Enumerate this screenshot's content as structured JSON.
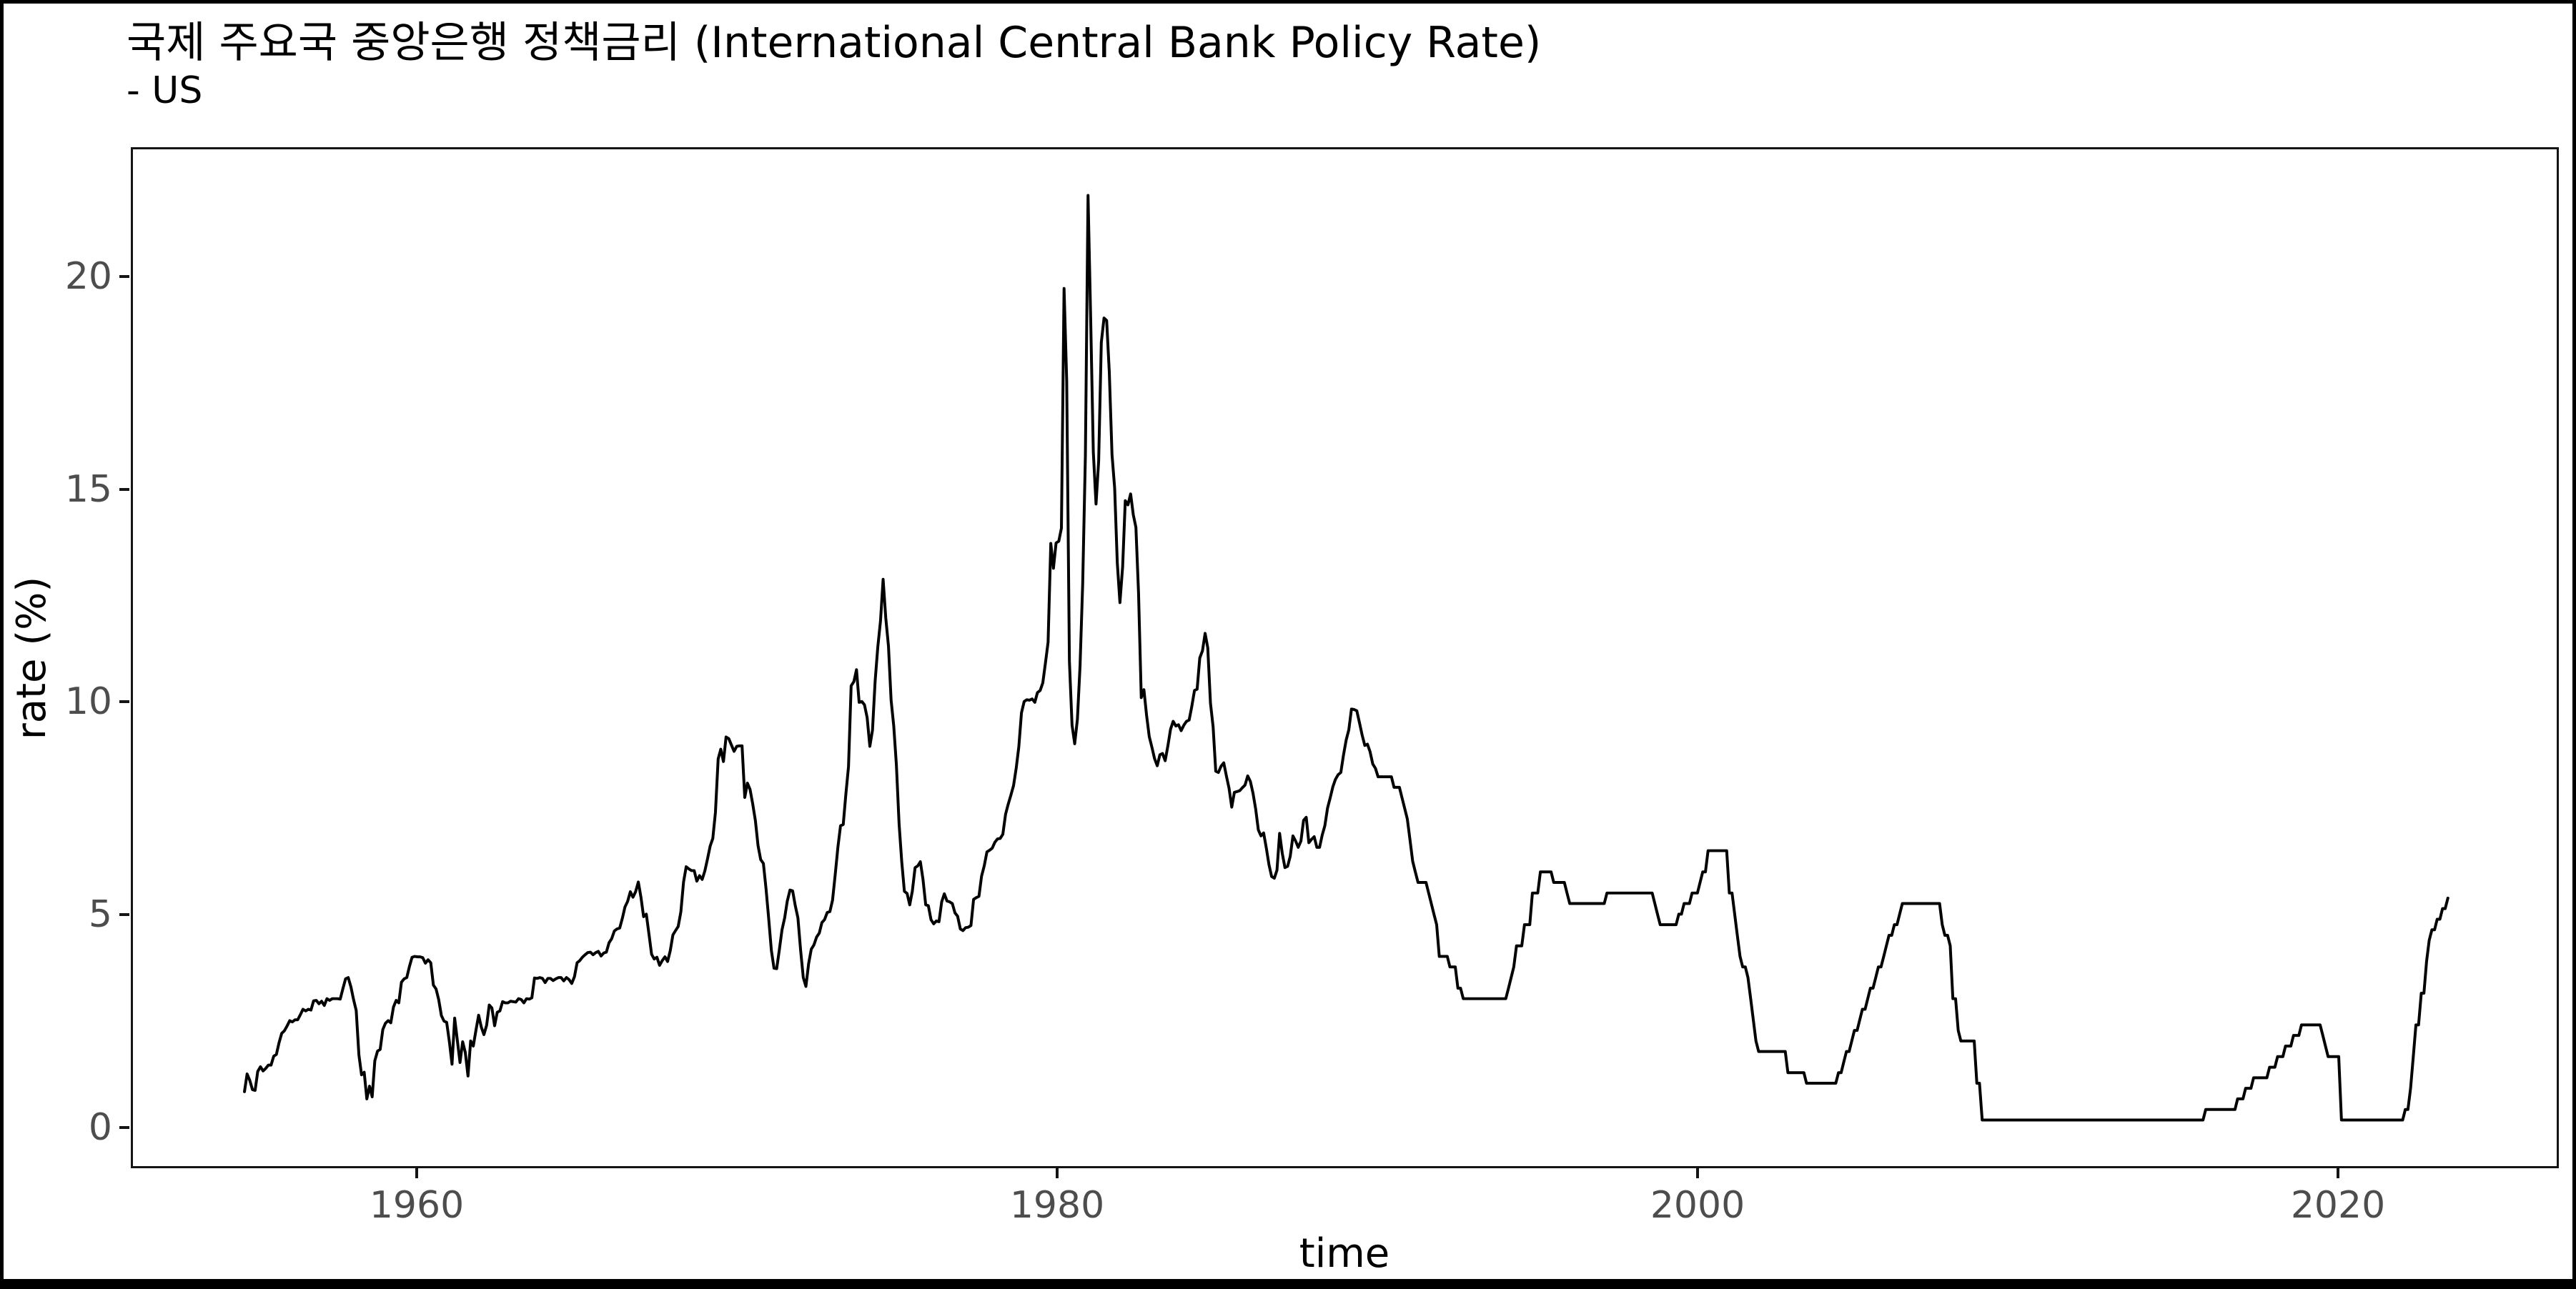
{
  "header": {
    "title": "국제 주요국 중앙은행 정책금리 (International Central Bank Policy Rate)",
    "subtitle": "- US"
  },
  "chart_data": {
    "type": "line",
    "title": "국제 주요국 중앙은행 정책금리 (International Central Bank Policy Rate)",
    "subtitle": "- US",
    "xlabel": "time",
    "ylabel": "rate (%)",
    "x_ticks": [
      1960,
      1980,
      2000,
      2020
    ],
    "y_ticks": [
      0,
      5,
      10,
      15,
      20
    ],
    "x_domain": [
      1951.05,
      2026.95
    ],
    "y_domain": [
      -0.96,
      23.09
    ],
    "grid": false,
    "legend_position": "none",
    "line_color": "#000000",
    "tick_label_color": "#4d4d4d",
    "background_color": "#ffffff",
    "series": [
      {
        "name": "US",
        "frequency": "monthly",
        "start_year": 1954,
        "start_month": 7,
        "values": [
          0.8,
          1.22,
          1.07,
          0.85,
          0.83,
          1.28,
          1.39,
          1.29,
          1.35,
          1.43,
          1.43,
          1.64,
          1.68,
          1.96,
          2.18,
          2.24,
          2.35,
          2.48,
          2.45,
          2.5,
          2.5,
          2.62,
          2.75,
          2.71,
          2.75,
          2.73,
          2.95,
          2.96,
          2.88,
          2.94,
          2.84,
          3.0,
          2.96,
          3.0,
          3.0,
          3.0,
          2.99,
          3.24,
          3.47,
          3.5,
          3.28,
          2.98,
          2.72,
          1.67,
          1.2,
          1.26,
          0.63,
          0.93,
          0.68,
          1.53,
          1.76,
          1.8,
          2.27,
          2.42,
          2.48,
          2.43,
          2.8,
          2.96,
          2.9,
          3.39,
          3.47,
          3.5,
          3.76,
          3.98,
          4.0,
          3.99,
          3.99,
          3.97,
          3.84,
          3.92,
          3.85,
          3.32,
          3.23,
          2.98,
          2.6,
          2.47,
          2.44,
          1.98,
          1.45,
          2.54,
          2.02,
          1.49,
          1.98,
          1.73,
          1.17,
          2.0,
          1.88,
          2.26,
          2.61,
          2.33,
          2.15,
          2.37,
          2.85,
          2.78,
          2.36,
          2.68,
          2.71,
          2.93,
          2.9,
          2.9,
          2.94,
          2.93,
          2.92,
          3.0,
          2.98,
          2.9,
          3.0,
          2.99,
          3.02,
          3.49,
          3.48,
          3.5,
          3.48,
          3.38,
          3.48,
          3.48,
          3.43,
          3.47,
          3.5,
          3.5,
          3.42,
          3.5,
          3.45,
          3.36,
          3.52,
          3.85,
          3.9,
          3.98,
          4.04,
          4.09,
          4.1,
          4.04,
          4.09,
          4.12,
          4.01,
          4.08,
          4.1,
          4.32,
          4.42,
          4.6,
          4.65,
          4.67,
          4.9,
          5.17,
          5.3,
          5.53,
          5.4,
          5.53,
          5.76,
          5.4,
          4.94,
          5.0,
          4.53,
          4.05,
          3.94,
          3.98,
          3.79,
          3.9,
          3.99,
          3.88,
          4.13,
          4.51,
          4.61,
          4.71,
          5.05,
          5.76,
          6.12,
          6.07,
          6.03,
          6.03,
          5.78,
          5.91,
          5.82,
          6.02,
          6.3,
          6.61,
          6.79,
          7.41,
          8.67,
          8.9,
          8.61,
          9.19,
          9.15,
          9.0,
          8.85,
          8.97,
          8.98,
          8.98,
          7.76,
          8.1,
          7.95,
          7.61,
          7.21,
          6.62,
          6.29,
          6.2,
          5.6,
          4.9,
          4.14,
          3.72,
          3.71,
          4.15,
          4.63,
          4.91,
          5.31,
          5.57,
          5.55,
          5.2,
          4.91,
          4.14,
          3.5,
          3.29,
          3.83,
          4.17,
          4.27,
          4.46,
          4.55,
          4.8,
          4.87,
          5.04,
          5.06,
          5.33,
          5.94,
          6.58,
          7.09,
          7.12,
          7.84,
          8.49,
          10.4,
          10.5,
          10.78,
          10.01,
          10.03,
          9.95,
          9.65,
          8.97,
          9.35,
          10.51,
          11.31,
          11.93,
          12.92,
          12.01,
          11.34,
          10.06,
          9.45,
          8.53,
          7.13,
          6.24,
          5.54,
          5.49,
          5.22,
          5.55,
          6.1,
          6.14,
          6.24,
          5.82,
          5.22,
          5.2,
          4.87,
          4.77,
          4.84,
          4.82,
          5.29,
          5.48,
          5.31,
          5.29,
          5.25,
          5.03,
          4.95,
          4.65,
          4.61,
          4.68,
          4.69,
          4.73,
          5.35,
          5.39,
          5.42,
          5.9,
          6.14,
          6.47,
          6.51,
          6.56,
          6.7,
          6.78,
          6.79,
          6.89,
          7.36,
          7.6,
          7.81,
          8.04,
          8.45,
          8.96,
          9.76,
          10.03,
          10.07,
          10.06,
          10.09,
          10.01,
          10.24,
          10.29,
          10.47,
          10.94,
          11.43,
          13.77,
          13.18,
          13.78,
          13.82,
          14.13,
          19.8,
          17.61,
          10.98,
          9.47,
          9.03,
          9.61,
          10.87,
          12.81,
          15.85,
          22.0,
          19.08,
          15.93,
          14.7,
          15.72,
          18.52,
          19.1,
          19.04,
          17.82,
          15.87,
          15.08,
          13.31,
          12.37,
          13.22,
          14.78,
          14.68,
          14.94,
          14.45,
          14.15,
          12.59,
          10.12,
          10.31,
          9.71,
          9.2,
          8.95,
          8.68,
          8.51,
          8.77,
          8.8,
          8.63,
          8.98,
          9.37,
          9.56,
          9.45,
          9.48,
          9.34,
          9.47,
          9.56,
          9.59,
          9.91,
          10.29,
          10.32,
          11.06,
          11.23,
          11.64,
          11.3,
          9.99,
          9.43,
          8.38,
          8.35,
          8.5,
          8.58,
          8.27,
          7.97,
          7.53,
          7.88,
          7.9,
          7.92,
          7.99,
          8.05,
          8.27,
          8.14,
          7.86,
          7.48,
          6.99,
          6.85,
          6.92,
          6.56,
          6.17,
          5.89,
          5.85,
          6.04,
          6.91,
          6.43,
          6.1,
          6.13,
          6.37,
          6.85,
          6.73,
          6.58,
          6.73,
          7.22,
          7.29,
          6.69,
          6.77,
          6.83,
          6.58,
          6.58,
          6.87,
          7.09,
          7.51,
          7.75,
          8.01,
          8.19,
          8.3,
          8.35,
          8.76,
          9.12,
          9.36,
          9.85,
          9.84,
          9.81,
          9.53,
          9.24,
          8.99,
          9.02,
          8.84,
          8.55,
          8.45,
          8.25,
          8.25,
          8.25,
          8.25,
          8.25,
          8.25,
          8.0,
          8.0,
          8.0,
          7.75,
          7.5,
          7.25,
          6.75,
          6.25,
          6.0,
          5.75,
          5.75,
          5.75,
          5.75,
          5.5,
          5.25,
          5.0,
          4.75,
          4.0,
          4.0,
          4.0,
          4.0,
          3.75,
          3.75,
          3.75,
          3.25,
          3.25,
          3.0,
          3.0,
          3.0,
          3.0,
          3.0,
          3.0,
          3.0,
          3.0,
          3.0,
          3.0,
          3.0,
          3.0,
          3.0,
          3.0,
          3.0,
          3.0,
          3.0,
          3.25,
          3.5,
          3.75,
          4.25,
          4.25,
          4.25,
          4.75,
          4.75,
          4.75,
          5.5,
          5.5,
          5.5,
          6.0,
          6.0,
          6.0,
          6.0,
          6.0,
          5.75,
          5.75,
          5.75,
          5.75,
          5.75,
          5.5,
          5.25,
          5.25,
          5.25,
          5.25,
          5.25,
          5.25,
          5.25,
          5.25,
          5.25,
          5.25,
          5.25,
          5.25,
          5.25,
          5.25,
          5.5,
          5.5,
          5.5,
          5.5,
          5.5,
          5.5,
          5.5,
          5.5,
          5.5,
          5.5,
          5.5,
          5.5,
          5.5,
          5.5,
          5.5,
          5.5,
          5.5,
          5.5,
          5.25,
          5.0,
          4.75,
          4.75,
          4.75,
          4.75,
          4.75,
          4.75,
          4.75,
          5.0,
          5.0,
          5.25,
          5.25,
          5.25,
          5.5,
          5.5,
          5.5,
          5.75,
          6.0,
          6.0,
          6.5,
          6.5,
          6.5,
          6.5,
          6.5,
          6.5,
          6.5,
          6.5,
          5.5,
          5.5,
          5.0,
          4.5,
          4.0,
          3.75,
          3.75,
          3.5,
          3.0,
          2.5,
          2.0,
          1.75,
          1.75,
          1.75,
          1.75,
          1.75,
          1.75,
          1.75,
          1.75,
          1.75,
          1.75,
          1.75,
          1.25,
          1.25,
          1.25,
          1.25,
          1.25,
          1.25,
          1.25,
          1.0,
          1.0,
          1.0,
          1.0,
          1.0,
          1.0,
          1.0,
          1.0,
          1.0,
          1.0,
          1.0,
          1.0,
          1.25,
          1.25,
          1.5,
          1.75,
          1.75,
          2.0,
          2.25,
          2.25,
          2.5,
          2.75,
          2.75,
          3.0,
          3.25,
          3.25,
          3.5,
          3.75,
          3.75,
          4.0,
          4.25,
          4.5,
          4.5,
          4.75,
          4.75,
          5.0,
          5.25,
          5.25,
          5.25,
          5.25,
          5.25,
          5.25,
          5.25,
          5.25,
          5.25,
          5.25,
          5.25,
          5.25,
          5.25,
          5.25,
          5.25,
          4.75,
          4.5,
          4.5,
          4.25,
          3.0,
          3.0,
          2.25,
          2.0,
          2.0,
          2.0,
          2.0,
          2.0,
          2.0,
          1.0,
          1.0,
          0.13,
          0.13,
          0.13,
          0.13,
          0.13,
          0.13,
          0.13,
          0.13,
          0.13,
          0.13,
          0.13,
          0.13,
          0.13,
          0.13,
          0.13,
          0.13,
          0.13,
          0.13,
          0.13,
          0.13,
          0.13,
          0.13,
          0.13,
          0.13,
          0.13,
          0.13,
          0.13,
          0.13,
          0.13,
          0.13,
          0.13,
          0.13,
          0.13,
          0.13,
          0.13,
          0.13,
          0.13,
          0.13,
          0.13,
          0.13,
          0.13,
          0.13,
          0.13,
          0.13,
          0.13,
          0.13,
          0.13,
          0.13,
          0.13,
          0.13,
          0.13,
          0.13,
          0.13,
          0.13,
          0.13,
          0.13,
          0.13,
          0.13,
          0.13,
          0.13,
          0.13,
          0.13,
          0.13,
          0.13,
          0.13,
          0.13,
          0.13,
          0.13,
          0.13,
          0.13,
          0.13,
          0.13,
          0.13,
          0.13,
          0.13,
          0.13,
          0.13,
          0.13,
          0.13,
          0.13,
          0.13,
          0.13,
          0.13,
          0.13,
          0.38,
          0.38,
          0.38,
          0.38,
          0.38,
          0.38,
          0.38,
          0.38,
          0.38,
          0.38,
          0.38,
          0.38,
          0.63,
          0.63,
          0.63,
          0.88,
          0.88,
          0.88,
          1.13,
          1.13,
          1.13,
          1.13,
          1.13,
          1.13,
          1.38,
          1.38,
          1.38,
          1.63,
          1.63,
          1.63,
          1.88,
          1.88,
          1.88,
          2.13,
          2.13,
          2.13,
          2.38,
          2.38,
          2.38,
          2.38,
          2.38,
          2.38,
          2.38,
          2.38,
          2.13,
          1.88,
          1.63,
          1.63,
          1.63,
          1.63,
          1.63,
          0.13,
          0.13,
          0.13,
          0.13,
          0.13,
          0.13,
          0.13,
          0.13,
          0.13,
          0.13,
          0.13,
          0.13,
          0.13,
          0.13,
          0.13,
          0.13,
          0.13,
          0.13,
          0.13,
          0.13,
          0.13,
          0.13,
          0.13,
          0.13,
          0.38,
          0.38,
          0.88,
          1.63,
          2.38,
          2.38,
          3.13,
          3.13,
          3.88,
          4.38,
          4.63,
          4.63,
          4.88,
          4.88,
          5.13,
          5.13,
          5.38
        ]
      }
    ]
  }
}
